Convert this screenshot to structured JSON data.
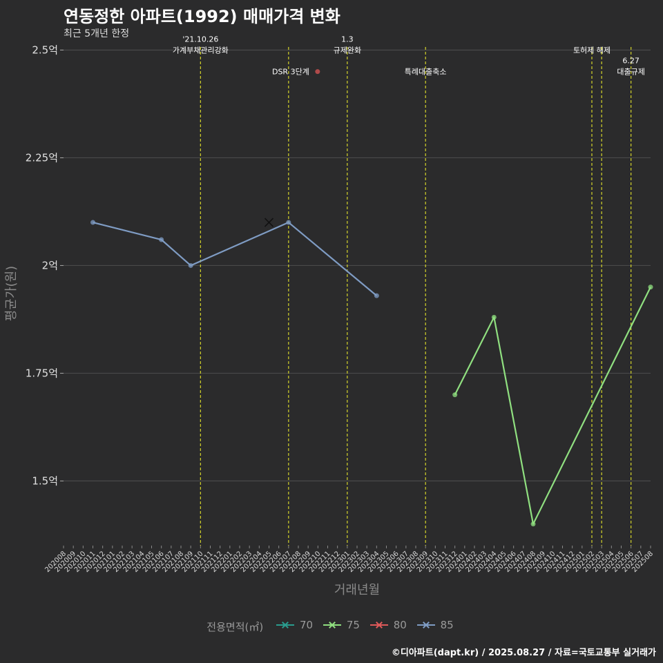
{
  "title": "연동정한 아파트(1992) 매매가격 변화",
  "subtitle": "최근 5개년 한정",
  "caption": "©디아파트(dapt.kr) / 2025.08.27 / 자료=국토교통부 실거래가",
  "colors": {
    "background": "#2b2b2c",
    "grid": "#4a4a4a",
    "event_line": "#d6d62a",
    "series_70": "#2a9d8f",
    "series_75": "#90e080",
    "series_80": "#e05a5a",
    "series_85": "#7f9cc4",
    "dsr_point": "#b04a4a"
  },
  "chart_data": {
    "type": "line",
    "xlabel": "거래년월",
    "ylabel": "평균가(원)",
    "ylim": [
      1.35,
      2.52
    ],
    "y_ticks": [
      {
        "value": 1.5,
        "label": "1.5억"
      },
      {
        "value": 1.75,
        "label": "1.75억"
      },
      {
        "value": 2.0,
        "label": "2억"
      },
      {
        "value": 2.25,
        "label": "2.25억"
      },
      {
        "value": 2.5,
        "label": "2.5억"
      }
    ],
    "categories": [
      "202008",
      "202009",
      "202010",
      "202011",
      "202012",
      "202101",
      "202102",
      "202103",
      "202104",
      "202105",
      "202106",
      "202107",
      "202108",
      "202109",
      "202110",
      "202111",
      "202112",
      "202201",
      "202202",
      "202203",
      "202204",
      "202205",
      "202206",
      "202207",
      "202208",
      "202209",
      "202210",
      "202211",
      "202212",
      "202301",
      "202302",
      "202303",
      "202304",
      "202305",
      "202306",
      "202307",
      "202308",
      "202309",
      "202310",
      "202311",
      "202312",
      "202401",
      "202402",
      "202403",
      "202404",
      "202405",
      "202406",
      "202407",
      "202408",
      "202409",
      "202410",
      "202411",
      "202412",
      "202501",
      "202502",
      "202503",
      "202504",
      "202505",
      "202506",
      "202507",
      "202508"
    ],
    "legend_title": "전용면적(㎡)",
    "series": [
      {
        "name": "70",
        "points": []
      },
      {
        "name": "75",
        "points": [
          {
            "x": "202312",
            "y": 1.7
          },
          {
            "x": "202404",
            "y": 1.88
          },
          {
            "x": "202408",
            "y": 1.4
          },
          {
            "x": "202508",
            "y": 1.95
          }
        ]
      },
      {
        "name": "80",
        "points": []
      },
      {
        "name": "85",
        "points": [
          {
            "x": "202011",
            "y": 2.1
          },
          {
            "x": "202106",
            "y": 2.06
          },
          {
            "x": "202109",
            "y": 2.0
          },
          {
            "x": "202207",
            "y": 2.1
          },
          {
            "x": "202304",
            "y": 1.93
          }
        ]
      }
    ],
    "special_marks": [
      {
        "x": "202205",
        "y": 2.1,
        "shape": "x"
      }
    ],
    "events": [
      {
        "x": "202110",
        "lines": [
          "'21.10.26",
          "가계부채관리강화"
        ],
        "label_y": 2.5
      },
      {
        "x": "202207",
        "lines": [
          "DSR 3단계"
        ],
        "label_y": 2.45,
        "point": true
      },
      {
        "x": "202301",
        "lines": [
          "1.3",
          "규제완화"
        ],
        "label_y": 2.5
      },
      {
        "x": "202309",
        "lines": [
          "특례대출축소"
        ],
        "label_y": 2.45
      },
      {
        "x": "202502",
        "lines": [
          "토허제 해제"
        ],
        "label_y": 2.5
      },
      {
        "x": "202503",
        "lines": [],
        "label_y": 2.5
      },
      {
        "x": "202506",
        "lines": [
          "6.27",
          "대출규제"
        ],
        "label_y": 2.45
      }
    ]
  }
}
